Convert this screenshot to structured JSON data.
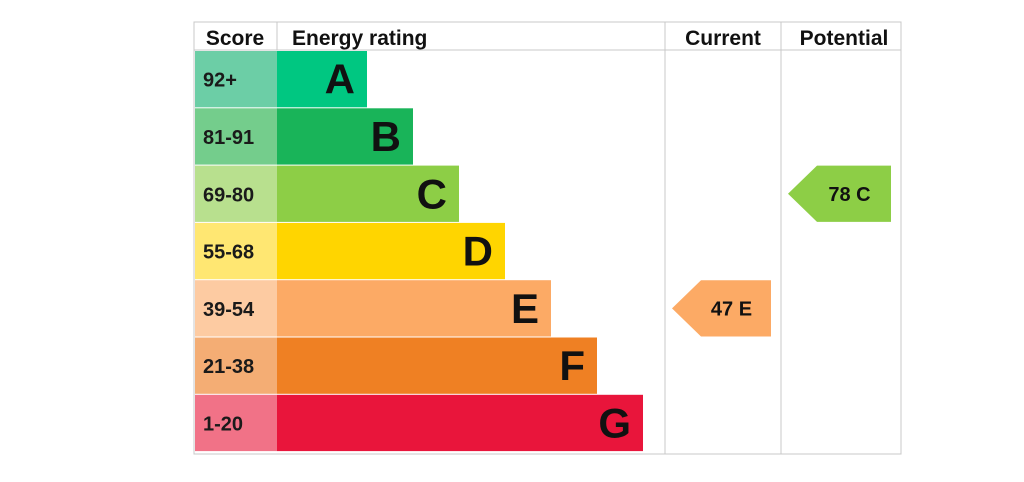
{
  "chart_data": {
    "type": "bar",
    "headers": {
      "score": "Score",
      "rating": "Energy rating",
      "current": "Current",
      "potential": "Potential"
    },
    "bands": [
      {
        "letter": "A",
        "range": "92+",
        "color": "#00c781",
        "score_color": "#6cceA6"
      },
      {
        "letter": "B",
        "range": "81-91",
        "color": "#19b459",
        "score_color": "#74cd8c"
      },
      {
        "letter": "C",
        "range": "69-80",
        "color": "#8dce46",
        "score_color": "#b8e08e"
      },
      {
        "letter": "D",
        "range": "55-68",
        "color": "#ffd500",
        "score_color": "#ffe772"
      },
      {
        "letter": "E",
        "range": "39-54",
        "color": "#fcaa65",
        "score_color": "#fdcba2"
      },
      {
        "letter": "F",
        "range": "21-38",
        "color": "#ef8023",
        "score_color": "#f4ad74"
      },
      {
        "letter": "G",
        "range": "1-20",
        "color": "#e9153b",
        "score_color": "#f17287"
      }
    ],
    "current": {
      "value": 47,
      "letter": "E",
      "color": "#fcaa65"
    },
    "potential": {
      "value": 78,
      "letter": "C",
      "color": "#8dce46"
    }
  }
}
